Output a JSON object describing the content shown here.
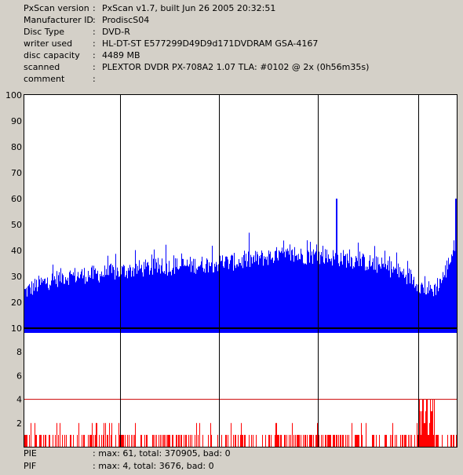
{
  "info": [
    {
      "label": "PxScan version",
      "value": "PxScan v1.7, built Jun 26 2005 20:32:51"
    },
    {
      "label": "Manufacturer ID",
      "value": "ProdiscS04"
    },
    {
      "label": "Disc Type",
      "value": "DVD-R"
    },
    {
      "label": "writer used",
      "value": "HL-DT-ST E577299D49D9d171DVDRAM GSA-4167"
    },
    {
      "label": "disc capacity",
      "value": "4489 MB"
    },
    {
      "label": "scanned",
      "value": "PLEXTOR DVDR PX-708A2 1.07 TLA: #0102 @ 2x (0h56m35s)"
    },
    {
      "label": "comment",
      "value": ""
    }
  ],
  "footer": [
    {
      "label": "PIE",
      "value": ": max: 61, total: 370905, bad: 0"
    },
    {
      "label": "PIF",
      "value": ": max: 4, total: 3676, bad: 0"
    }
  ],
  "colors": {
    "pie": "#0000ff",
    "pif": "#ff0000",
    "grid": "#000000",
    "panel_bg": "#ffffff",
    "page_bg": "#d4d0c8",
    "pif_threshold": "#cc0000"
  },
  "chart_data": [
    {
      "type": "area",
      "name": "PIE",
      "ylim": [
        0,
        100
      ],
      "yticks": [
        10,
        20,
        30,
        40,
        50,
        60,
        70,
        80,
        90,
        100
      ],
      "xlim": [
        0,
        4489
      ],
      "grid": "vertical lines at 1/5 intervals",
      "profile": {
        "x": [
          0,
          150,
          400,
          800,
          1200,
          1600,
          2000,
          2300,
          2600,
          2800,
          3000,
          3300,
          3600,
          3800,
          4000,
          4150,
          4250,
          4350,
          4489
        ],
        "y": [
          24,
          27,
          30,
          31,
          33,
          34,
          35,
          36,
          38,
          38,
          38,
          37,
          35,
          33,
          30,
          25,
          25,
          30,
          44
        ]
      },
      "spikes": [
        {
          "x": 3240,
          "y": 60
        },
        {
          "x": 4480,
          "y": 60
        }
      ]
    },
    {
      "type": "bar",
      "name": "PIF",
      "ylim": [
        0,
        10
      ],
      "yticks": [
        2,
        4,
        6,
        8,
        10
      ],
      "xlim": [
        0,
        4489
      ],
      "threshold": 4,
      "cluster": {
        "x": [
          4070,
          4260
        ],
        "max": 4
      }
    }
  ]
}
